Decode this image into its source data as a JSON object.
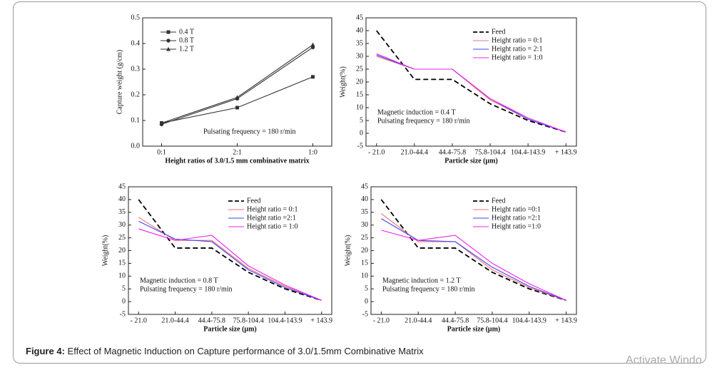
{
  "chart_data": [
    {
      "type": "line",
      "categories": [
        "0:1",
        "2:1",
        "1:0"
      ],
      "xlabel": "Height ratios of 3.0/1.5 mm combinative matrix",
      "ylabel": "Capture weight (g/cm)",
      "ylim": [
        0,
        0.5
      ],
      "yticks": [
        {
          "value": 0,
          "label": "0.0"
        },
        0.1,
        0.2,
        0.3,
        0.4,
        0.5
      ],
      "legend": "upper left",
      "annotations": [
        "Pulsating frequency = 180 r/min"
      ],
      "series": [
        {
          "name": "0.4 T",
          "color": "#333333",
          "marker": "square",
          "values": [
            0.09,
            0.15,
            0.27
          ]
        },
        {
          "name": "0.8 T",
          "color": "#333333",
          "marker": "circle",
          "values": [
            0.085,
            0.185,
            0.385
          ]
        },
        {
          "name": "1.2 T",
          "color": "#333333",
          "marker": "triangle",
          "values": [
            0.09,
            0.19,
            0.395
          ]
        }
      ]
    },
    {
      "type": "line",
      "categories": [
        "- 21.0",
        "21.0-44.4",
        "44.4-75.8",
        "75.8-104.4",
        "104.4-143.9",
        "+ 143.9"
      ],
      "xlabel": "Particle size (μm)",
      "ylabel": "Weight(%)",
      "ylim": [
        -5,
        45
      ],
      "yticks": [
        -5,
        0,
        5,
        10,
        15,
        20,
        25,
        30,
        35,
        40,
        45
      ],
      "legend": "upper right",
      "annotations": [
        "Magnetic induction = 0.4 T",
        "Pulsating frequency = 180 r/min"
      ],
      "series": [
        {
          "name": "Feed",
          "color": "#000000",
          "style": "dashed",
          "values": [
            40,
            21,
            21,
            11.5,
            5,
            0.5
          ]
        },
        {
          "name": "Height ratio = 0:1",
          "color": "#f07070",
          "values": [
            30,
            25,
            25,
            13,
            5.5,
            0.5
          ]
        },
        {
          "name": "Height ratio = 2:1",
          "color": "#4444ee",
          "values": [
            30.5,
            25,
            25,
            13.5,
            5.5,
            0.5
          ]
        },
        {
          "name": "Height ratio = 1:0",
          "color": "#ee22ee",
          "values": [
            31,
            25,
            25,
            13.5,
            6,
            0.5
          ]
        }
      ]
    },
    {
      "type": "line",
      "categories": [
        "- 21.0",
        "21.0-44.4",
        "44.4-75.8",
        "75.8-104.4",
        "104.4-143.9",
        "+ 143.9"
      ],
      "xlabel": "Particle size (μm)",
      "ylabel": "Weight(%)",
      "ylim": [
        -5,
        45
      ],
      "yticks": [
        -5,
        0,
        5,
        10,
        15,
        20,
        25,
        30,
        35,
        40,
        45
      ],
      "legend": "upper right",
      "annotations": [
        "Magnetic induction = 0.8 T",
        "Pulsating frequency = 180 r/min"
      ],
      "series": [
        {
          "name": "Feed",
          "color": "#000000",
          "style": "dashed",
          "values": [
            40,
            21,
            21,
            11.5,
            5,
            0.5
          ]
        },
        {
          "name": "Height ratio = 0:1",
          "color": "#f07070",
          "values": [
            33,
            24,
            24,
            13,
            6,
            0.5
          ]
        },
        {
          "name": "Height ratio =2:1",
          "color": "#4444ee",
          "values": [
            31.5,
            24.5,
            23.5,
            12.5,
            5.5,
            0.5
          ]
        },
        {
          "name": "Height ratio = 1:0",
          "color": "#ee22ee",
          "values": [
            28.5,
            24,
            26,
            14,
            6.5,
            0.5
          ]
        }
      ]
    },
    {
      "type": "line",
      "categories": [
        "- 21.0",
        "21.0-44.4",
        "44.4-75.8",
        "75.8-104.4",
        "104.4-143.9",
        "+ 143.9"
      ],
      "xlabel": "Particle size (μm)",
      "ylabel": "Weight(%)",
      "ylim": [
        -5,
        45
      ],
      "yticks": [
        -5,
        0,
        5,
        10,
        15,
        20,
        25,
        30,
        35,
        40,
        45
      ],
      "legend": "upper right",
      "annotations": [
        "Magnetic induction = 1.2 T",
        "Pulsating frequency = 180 r/min"
      ],
      "series": [
        {
          "name": "Feed",
          "color": "#000000",
          "style": "dashed",
          "values": [
            40,
            21,
            21,
            11.5,
            5,
            0.5
          ]
        },
        {
          "name": "Height ratio =0:1",
          "color": "#f07070",
          "values": [
            34.5,
            23.5,
            23.5,
            12.5,
            5.5,
            0.5
          ]
        },
        {
          "name": "Height ratio =2:1",
          "color": "#4444ee",
          "values": [
            32.5,
            24,
            23.5,
            13.5,
            6,
            0.5
          ]
        },
        {
          "name": "Height ratio =1:0",
          "color": "#ee22ee",
          "values": [
            28,
            24,
            26,
            15,
            7,
            0.5
          ]
        }
      ]
    }
  ],
  "caption": {
    "label": "Figure 4:",
    "text": "Effect of Magnetic Induction on Capture performance of 3.0/1.5mm Combinative Matrix"
  },
  "watermark": "Activate Windo"
}
